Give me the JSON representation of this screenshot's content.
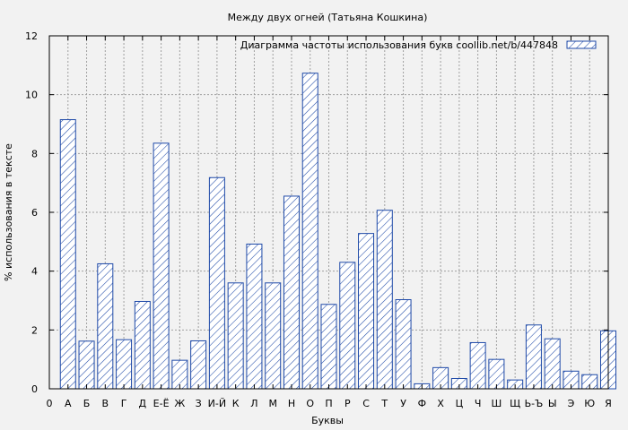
{
  "chart_data": {
    "type": "bar",
    "title": "Между двух огней (Татьяна Кошкина)",
    "xlabel": "Буквы",
    "ylabel": "% использования в тексте",
    "legend": "Диаграмма частоты использования букв  coollib.net/b/447848",
    "legend_position": "top-right",
    "grid": true,
    "ylim": [
      0,
      12
    ],
    "yticks": [
      0,
      2,
      4,
      6,
      8,
      10,
      12
    ],
    "x_tick_labels": [
      "0",
      "А",
      "Б",
      "В",
      "Г",
      "Д",
      "Е-Ё",
      "Ж",
      "З",
      "И-Й",
      "К",
      "Л",
      "М",
      "Н",
      "О",
      "П",
      "Р",
      "С",
      "Т",
      "У",
      "Ф",
      "Х",
      "Ц",
      "Ч",
      "Ш",
      "Щ",
      "Ь-Ъ",
      "Ы",
      "Э",
      "Ю",
      "Я"
    ],
    "categories": [
      "А",
      "Б",
      "В",
      "Г",
      "Д",
      "Е-Ё",
      "Ж",
      "З",
      "И-Й",
      "К",
      "Л",
      "М",
      "Н",
      "О",
      "П",
      "Р",
      "С",
      "Т",
      "У",
      "Ф",
      "Х",
      "Ц",
      "Ч",
      "Ш",
      "Щ",
      "Ь-Ъ",
      "Ы",
      "Э",
      "Ю",
      "Я"
    ],
    "values": [
      9.15,
      1.62,
      4.25,
      1.67,
      2.97,
      8.35,
      0.97,
      1.63,
      7.18,
      3.6,
      4.92,
      3.6,
      6.55,
      10.73,
      2.87,
      4.3,
      5.28,
      6.07,
      3.03,
      0.17,
      0.72,
      0.35,
      1.57,
      1.0,
      0.3,
      2.17,
      1.7,
      0.6,
      0.48,
      1.97
    ],
    "colors": {
      "bar_stroke": "#1f4aa8",
      "background": "#f2f2f2"
    }
  }
}
